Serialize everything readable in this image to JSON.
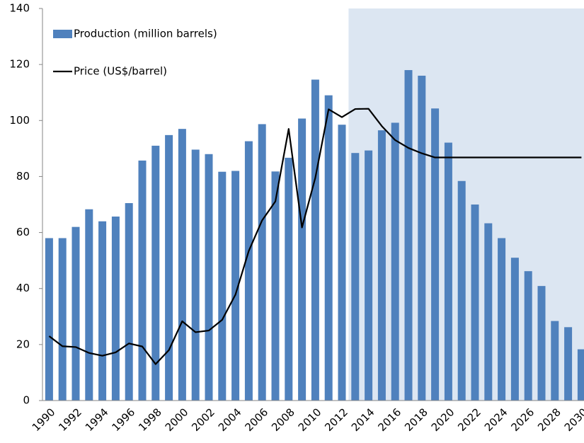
{
  "chart_data": {
    "type": "bar-line",
    "categories": [
      "1990",
      null,
      "1992",
      null,
      "1994",
      null,
      "1996",
      null,
      "1998",
      null,
      "2000",
      null,
      "2002",
      null,
      "2004",
      null,
      "2006",
      null,
      "2008",
      null,
      "2010",
      null,
      "2012",
      null,
      "2014",
      null,
      "2016",
      null,
      "2018",
      null,
      "2020",
      null,
      "2022",
      null,
      "2024",
      null,
      "2026",
      null,
      "2028",
      null,
      "2030"
    ],
    "series": [
      {
        "name": "Production (million barrels)",
        "type": "bar",
        "color": "#4f81bd",
        "values": [
          58,
          58,
          62,
          68.3,
          64,
          65.7,
          70.5,
          85.7,
          91,
          94.8,
          97,
          89.6,
          88,
          81.7,
          82,
          92.6,
          98.7,
          81.8,
          86.7,
          100.7,
          114.6,
          109,
          98.5,
          88.4,
          89.3,
          96.5,
          99.2,
          118,
          116,
          104.3,
          92.1,
          78.4,
          70,
          63.3,
          58,
          51,
          46.2,
          40.9,
          28.4,
          26.2,
          18.3
        ]
      },
      {
        "name": "Price (US$/barrel)",
        "type": "line",
        "color": "#000000",
        "values": [
          23,
          19.4,
          19.1,
          17,
          16,
          17.2,
          20.4,
          19.3,
          13,
          18,
          28.3,
          24.4,
          25,
          28.8,
          37.8,
          53.4,
          64.3,
          71.1,
          97,
          61.8,
          79.5,
          104,
          101.2,
          104.1,
          104.2,
          98,
          93,
          90.2,
          88.3,
          86.8,
          86.8,
          86.8,
          86.8,
          86.8,
          86.8,
          86.8,
          86.8,
          86.8,
          86.8,
          86.8,
          86.8
        ]
      }
    ],
    "ylim": [
      0,
      140
    ],
    "yticks": [
      0,
      20,
      40,
      60,
      80,
      100,
      120,
      140
    ],
    "shade_start_index": 23,
    "shade_color": "#dce6f2",
    "legend": "top-left"
  }
}
